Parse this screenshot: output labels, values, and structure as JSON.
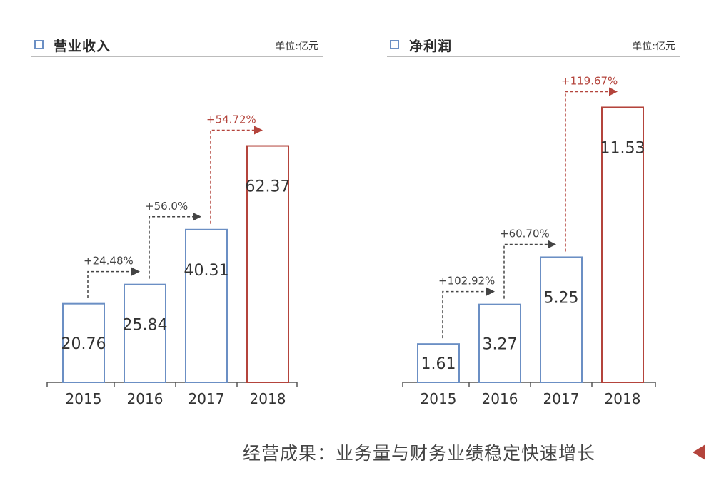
{
  "footer": {
    "text": "经营成果：业务量与财务业绩稳定快速增长",
    "arrow_icon": "left-triangle-icon"
  },
  "colors": {
    "blue": "#6b8fc4",
    "red": "#b4443c",
    "axis": "#555555",
    "text": "#333333"
  },
  "chart_data": [
    {
      "type": "bar",
      "title": "营业收入",
      "unit": "单位:亿元",
      "categories": [
        "2015",
        "2016",
        "2017",
        "2018"
      ],
      "values": [
        20.76,
        25.84,
        40.31,
        62.37
      ],
      "value_labels": [
        "20.76",
        "25.84",
        "40.31",
        "62.37"
      ],
      "highlight_index": 3,
      "growth": [
        "+24.48%",
        "+56.0%",
        "+54.72%"
      ],
      "ylim": [
        0,
        70
      ],
      "grid": false,
      "legend": "none"
    },
    {
      "type": "bar",
      "title": "净利润",
      "unit": "单位:亿元",
      "categories": [
        "2015",
        "2016",
        "2017",
        "2018"
      ],
      "values": [
        1.61,
        3.27,
        5.25,
        11.53
      ],
      "value_labels": [
        "1.61",
        "3.27",
        "5.25",
        "11.53"
      ],
      "highlight_index": 3,
      "growth": [
        "+102.92%",
        "+60.70%",
        "+119.67%"
      ],
      "ylim": [
        0,
        12.8
      ],
      "grid": false,
      "legend": "none"
    }
  ]
}
